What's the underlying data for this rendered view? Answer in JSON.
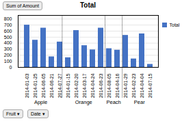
{
  "chart_data": {
    "type": "bar",
    "title": "Total",
    "categories": [
      "2014-01-03",
      "2014-01-25",
      "2014-06-05",
      "2014-06-21",
      "2014-07-27",
      "2014-01-15",
      "2014-02-20",
      "2014-03-17",
      "2014-04-24",
      "2014-06-23",
      "2014-08-05",
      "2014-04-16",
      "2014-01-29",
      "2014-02-23",
      "2014-04-04",
      "2014-07-15"
    ],
    "series": [
      {
        "name": "Total",
        "color": "#4472C4",
        "values": [
          700,
          450,
          650,
          175,
          420,
          160,
          610,
          360,
          290,
          650,
          310,
          285,
          530,
          140,
          555,
          50
        ]
      }
    ],
    "groups": [
      {
        "name": "Apple",
        "categories": [
          "2014-01-03",
          "2014-01-25",
          "2014-06-05",
          "2014-06-21",
          "2014-07-27"
        ]
      },
      {
        "name": "Orange",
        "categories": [
          "2014-01-15",
          "2014-02-20",
          "2014-03-17",
          "2014-04-24",
          "2014-06-23"
        ]
      },
      {
        "name": "Peach",
        "categories": [
          "2014-08-05",
          "2014-04-16"
        ]
      },
      {
        "name": "Pear",
        "categories": [
          "2014-01-29",
          "2014-02-23",
          "2014-04-04",
          "2014-07-15"
        ]
      }
    ],
    "ylim": [
      0,
      860
    ],
    "yticks": [
      0,
      100,
      200,
      300,
      400,
      500,
      600,
      700,
      800
    ],
    "grid": true,
    "legend": "right",
    "annotations": [
      "Sum of Amount",
      "Fruit ▾",
      "Date ▾"
    ]
  }
}
